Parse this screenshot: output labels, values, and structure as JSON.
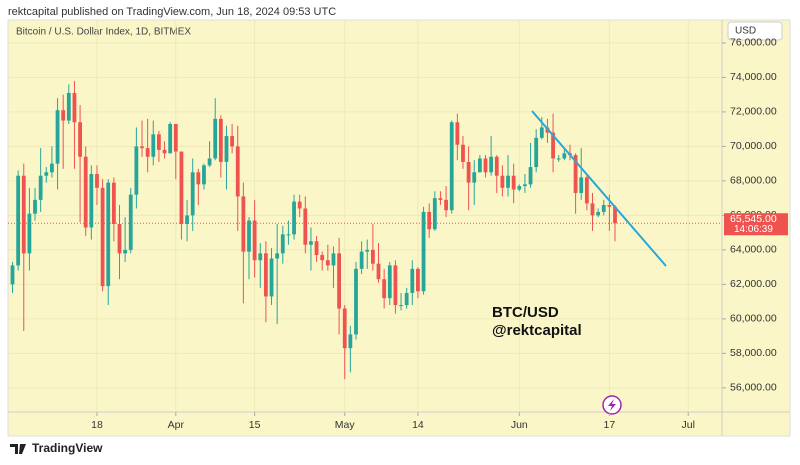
{
  "header": {
    "published": "rektcapital published on TradingView.com, Jun 18, 2024 09:53 UTC",
    "footer": "TradingView"
  },
  "chart_data": {
    "type": "candlestick",
    "title": "Bitcoin / U.S. Dollar Index, 1D, BITMEX",
    "currency": "USD",
    "annotations": [
      "BTC/USD",
      "@rektcapital"
    ],
    "last_price_label": "65,545.00",
    "countdown": "14:06:39",
    "up_color": "#26a69a",
    "down_color": "#ef5350",
    "grid": true,
    "xlim": [
      -0.8,
      126
    ],
    "xticks": [
      {
        "value": 15,
        "label": "18"
      },
      {
        "value": 29,
        "label": "Apr"
      },
      {
        "value": 43,
        "label": "15"
      },
      {
        "value": 59,
        "label": "May"
      },
      {
        "value": 72,
        "label": "14"
      },
      {
        "value": 90,
        "label": "Jun"
      },
      {
        "value": 106,
        "label": "17"
      },
      {
        "value": 120,
        "label": "Jul"
      }
    ],
    "ylim": [
      54600,
      77330
    ],
    "yticks": [
      {
        "value": 56000,
        "label": "56,000.00"
      },
      {
        "value": 58000,
        "label": "58,000.00"
      },
      {
        "value": 60000,
        "label": "60,000.00"
      },
      {
        "value": 62000,
        "label": "62,000.00"
      },
      {
        "value": 64000,
        "label": "64,000.00"
      },
      {
        "value": 66000,
        "label": "66,000.00"
      },
      {
        "value": 68000,
        "label": "68,000.00"
      },
      {
        "value": 70000,
        "label": "70,000.00"
      },
      {
        "value": 72000,
        "label": "72,000.00"
      },
      {
        "value": 74000,
        "label": "74,000.00"
      },
      {
        "value": 76000,
        "label": "76,000.00"
      }
    ],
    "open": [
      62000,
      63100,
      68300,
      63800,
      66100,
      66900,
      68300,
      68500,
      69000,
      72100,
      71500,
      73100,
      71400,
      69400,
      65300,
      68400,
      67600,
      61900,
      67900,
      65500,
      63800,
      64000,
      67200,
      70000,
      69900,
      69400,
      70700,
      69800,
      69600,
      71300,
      69700,
      65500,
      66000,
      68500,
      67800,
      68900,
      69300,
      71600,
      69100,
      70600,
      70000,
      67100,
      63900,
      65700,
      63400,
      63800,
      61300,
      63500,
      63800,
      64900,
      64900,
      66800,
      66400,
      64300,
      64500,
      63700,
      63400,
      63100,
      63800,
      60600,
      58300,
      59100,
      62900,
      63900,
      64000,
      63200,
      62300,
      61200,
      63100,
      60800,
      60800,
      61500,
      62900,
      61600,
      66200,
      65200,
      67000,
      66900,
      66300,
      71400,
      70100,
      69100,
      67900,
      68500,
      69300,
      68500,
      69400,
      68300,
      67600,
      68300,
      67500,
      67700,
      67800,
      68800,
      70500,
      71100,
      70800,
      69300,
      69300,
      69600,
      69500,
      67300,
      68200,
      66700,
      66000,
      66200,
      66600,
      66500
    ],
    "high": [
      63300,
      68600,
      69000,
      67600,
      67600,
      69900,
      68800,
      70000,
      72800,
      73000,
      73600,
      73800,
      72400,
      70000,
      68900,
      68900,
      68100,
      68100,
      68200,
      66600,
      65900,
      67600,
      71100,
      71500,
      71600,
      71500,
      70900,
      70300,
      71400,
      71300,
      69700,
      66900,
      69300,
      68700,
      69000,
      70300,
      72800,
      71800,
      71200,
      71300,
      71200,
      67900,
      65900,
      66900,
      64400,
      64500,
      64100,
      65500,
      65400,
      65700,
      67200,
      67200,
      67100,
      65300,
      64800,
      63900,
      64300,
      64200,
      64700,
      60800,
      59600,
      63300,
      64500,
      64600,
      65500,
      64400,
      62900,
      63300,
      63400,
      61500,
      61800,
      63400,
      63000,
      66500,
      66700,
      67400,
      67400,
      67700,
      71500,
      71900,
      70600,
      70000,
      69200,
      69500,
      69500,
      70600,
      69500,
      68900,
      69500,
      69000,
      67800,
      68400,
      70200,
      71000,
      71700,
      71600,
      71900,
      69500,
      69900,
      70100,
      69600,
      69900,
      68400,
      67300,
      66400,
      66900,
      67200,
      66600
    ],
    "low": [
      61500,
      62800,
      59300,
      62800,
      65700,
      66200,
      67900,
      68200,
      67500,
      68700,
      71300,
      68700,
      65600,
      64800,
      64600,
      66600,
      61600,
      60800,
      64500,
      62300,
      63300,
      63800,
      66400,
      69400,
      68500,
      68900,
      69100,
      69300,
      69600,
      68100,
      64600,
      64500,
      65100,
      66600,
      67500,
      68800,
      69200,
      68200,
      67500,
      69600,
      65100,
      60900,
      62300,
      62400,
      61800,
      59800,
      60800,
      59700,
      63200,
      64300,
      64600,
      65900,
      63800,
      62800,
      63300,
      62800,
      62800,
      61800,
      59100,
      56500,
      56900,
      58800,
      62600,
      62900,
      62800,
      62100,
      60600,
      60800,
      60300,
      60500,
      60600,
      60800,
      61200,
      61400,
      64700,
      65100,
      66600,
      65900,
      66100,
      69200,
      68700,
      66300,
      66600,
      68500,
      68200,
      68300,
      67300,
      67100,
      67100,
      66700,
      67400,
      67300,
      67600,
      68500,
      70400,
      70200,
      68500,
      69100,
      69200,
      69200,
      66100,
      66900,
      66300,
      65100,
      65900,
      66000,
      65100,
      64500
    ],
    "close": [
      63100,
      68300,
      63800,
      66100,
      66900,
      68300,
      68500,
      69000,
      72100,
      71500,
      73100,
      71400,
      69400,
      65300,
      68400,
      67600,
      61900,
      67900,
      65500,
      63800,
      64000,
      67200,
      70000,
      69900,
      69400,
      70700,
      69800,
      69600,
      71300,
      69700,
      65500,
      66000,
      68500,
      67800,
      68900,
      69300,
      71600,
      69100,
      70600,
      70000,
      67100,
      63900,
      65700,
      63400,
      63800,
      61300,
      63500,
      63800,
      64900,
      64900,
      66800,
      66400,
      64300,
      64500,
      63700,
      63400,
      63100,
      63800,
      60600,
      58300,
      59100,
      62900,
      63900,
      64000,
      63200,
      62300,
      61200,
      63100,
      60800,
      60800,
      61500,
      62900,
      61600,
      66200,
      65200,
      67000,
      66900,
      66300,
      71400,
      70100,
      69100,
      67900,
      68500,
      69300,
      68500,
      69400,
      68300,
      67600,
      68300,
      67500,
      67700,
      67800,
      68800,
      70500,
      71100,
      70800,
      69300,
      69300,
      69600,
      69500,
      67300,
      68200,
      66700,
      66000,
      66200,
      66600,
      66500,
      65545
    ]
  }
}
